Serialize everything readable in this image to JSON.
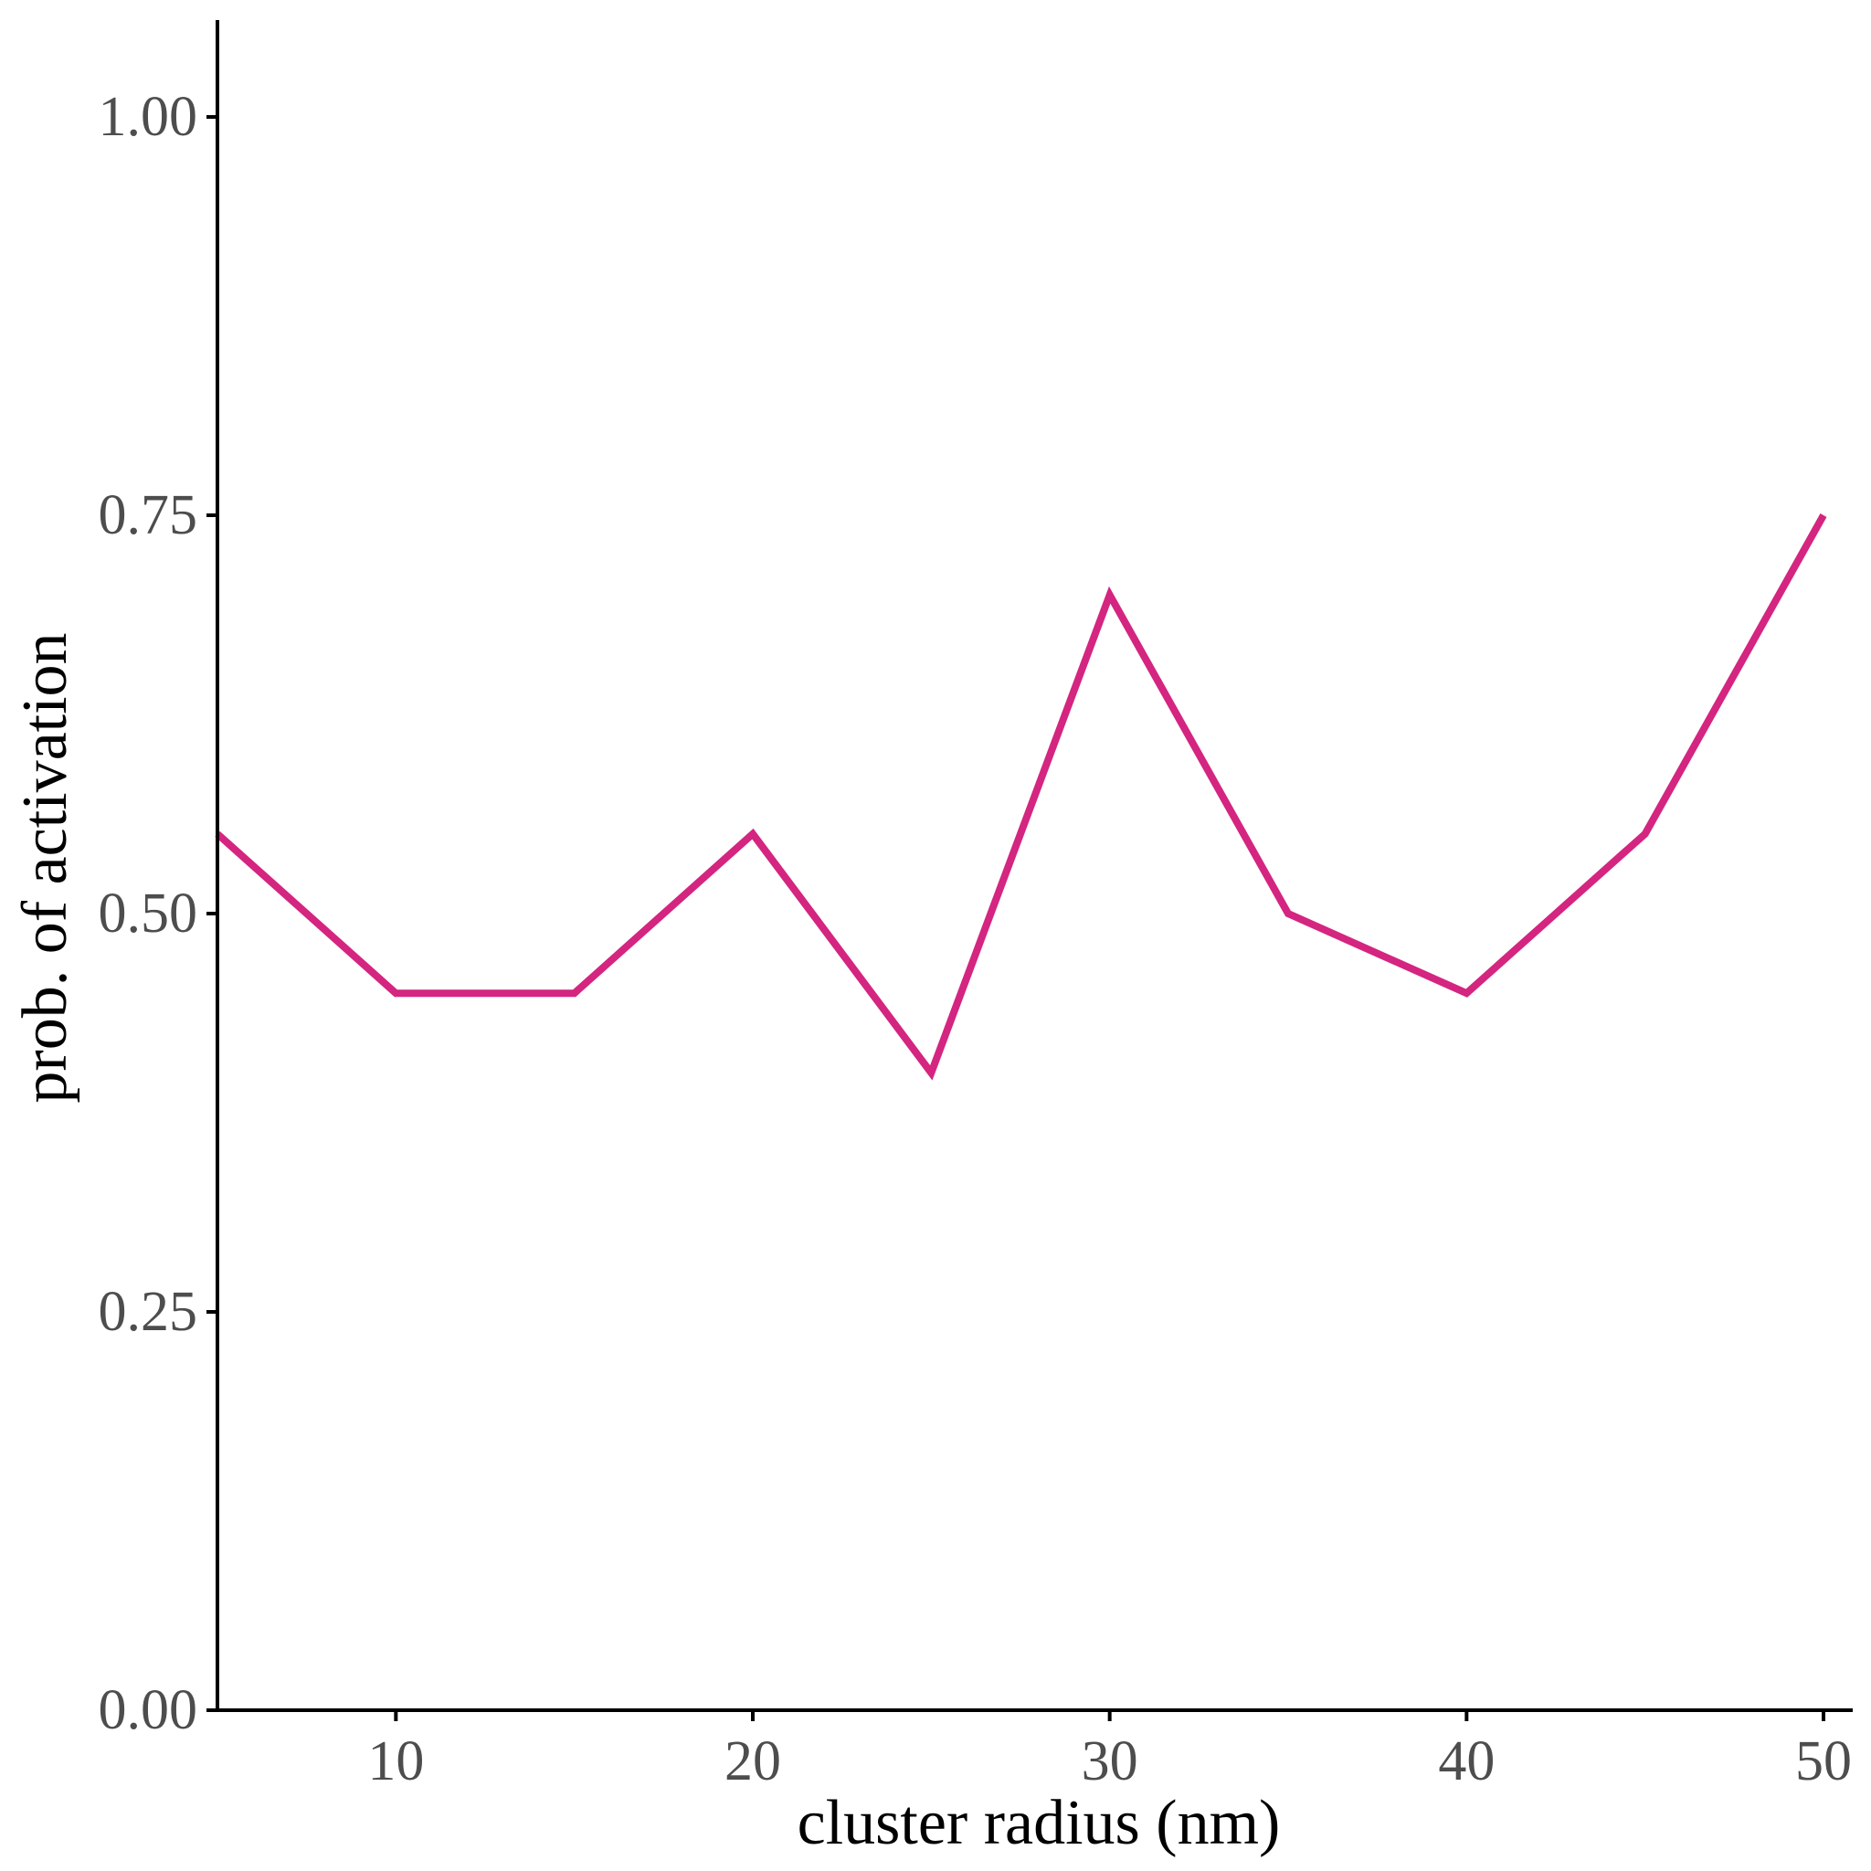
{
  "chart_data": {
    "type": "line",
    "xlabel": "cluster radius (nm)",
    "ylabel": "prob. of activation",
    "xlim": [
      5,
      51
    ],
    "ylim": [
      0,
      1.06
    ],
    "x_ticks": [
      10,
      20,
      30,
      40,
      50
    ],
    "x_tick_labels": [
      "10",
      "20",
      "30",
      "40",
      "50"
    ],
    "y_ticks": [
      0,
      0.25,
      0.5,
      0.75,
      1.0
    ],
    "y_tick_labels": [
      "0.00",
      "0.25",
      "0.50",
      "0.75",
      "1.00"
    ],
    "grid": false,
    "series": [
      {
        "color": "#D42580",
        "x": [
          5,
          10,
          15,
          20,
          25,
          30,
          35,
          40,
          45,
          50
        ],
        "y": [
          0.55,
          0.45,
          0.45,
          0.55,
          0.4,
          0.7,
          0.5,
          0.45,
          0.55,
          0.75
        ]
      }
    ]
  }
}
